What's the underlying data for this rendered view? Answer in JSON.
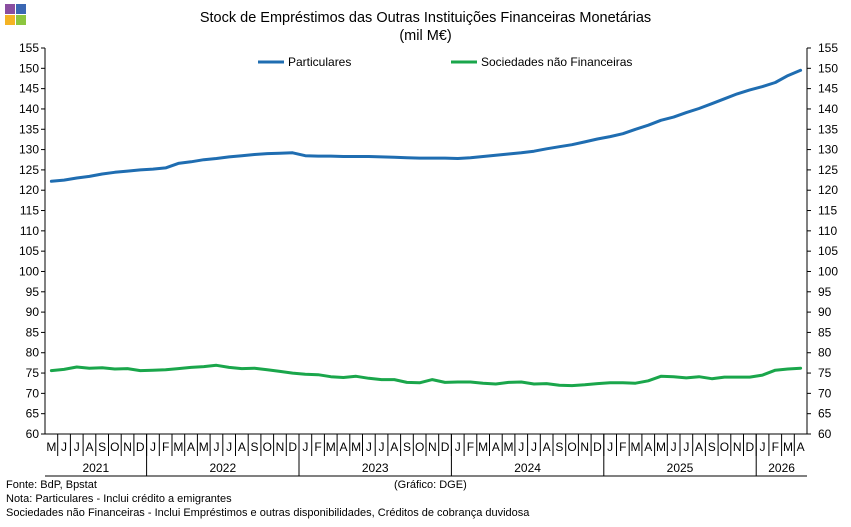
{
  "chart_data": {
    "type": "line",
    "title": "Stock de Empréstimos das Outras Instituições Financeiras Monetárias",
    "subtitle": "(mil M€)",
    "ylim": [
      60,
      155
    ],
    "yticks": [
      60,
      65,
      70,
      75,
      80,
      85,
      90,
      95,
      100,
      105,
      110,
      115,
      120,
      125,
      130,
      135,
      140,
      145,
      150,
      155
    ],
    "grid": false,
    "legend_position": "top",
    "month_labels": [
      "M",
      "J",
      "J",
      "A",
      "S",
      "O",
      "N",
      "D",
      "J",
      "F",
      "M",
      "A",
      "M",
      "J",
      "J",
      "A",
      "S",
      "O",
      "N",
      "D",
      "J",
      "F",
      "M",
      "A",
      "M",
      "J",
      "J",
      "A",
      "S",
      "O",
      "N",
      "D",
      "J",
      "F",
      "M",
      "A",
      "M",
      "J",
      "J",
      "A",
      "S",
      "O",
      "N",
      "D",
      "J",
      "F",
      "M",
      "A",
      "M",
      "J",
      "J",
      "A",
      "S",
      "O",
      "N",
      "D",
      "J",
      "F",
      "M",
      "A"
    ],
    "years": [
      {
        "label": "2021",
        "months": 8
      },
      {
        "label": "2022",
        "months": 12
      },
      {
        "label": "2023",
        "months": 12
      },
      {
        "label": "2024",
        "months": 12
      },
      {
        "label": "2025",
        "months": 12
      },
      {
        "label": "2026",
        "months": 4
      }
    ],
    "series": [
      {
        "name": "Particulares",
        "color": "#1f6db1",
        "values": [
          122.2,
          122.5,
          123.0,
          123.4,
          124.0,
          124.4,
          124.7,
          125.0,
          125.2,
          125.5,
          126.6,
          127.0,
          127.5,
          127.8,
          128.2,
          128.5,
          128.8,
          129.0,
          129.1,
          129.2,
          128.5,
          128.4,
          128.4,
          128.3,
          128.3,
          128.3,
          128.2,
          128.1,
          128.0,
          127.9,
          127.9,
          127.9,
          127.8,
          128.0,
          128.3,
          128.6,
          128.9,
          129.2,
          129.6,
          130.2,
          130.7,
          131.2,
          131.9,
          132.6,
          133.2,
          133.9,
          135.0,
          136.0,
          137.2,
          138.0,
          139.1,
          140.1,
          141.3,
          142.5,
          143.7,
          144.7,
          145.5,
          146.5,
          148.2,
          149.5
        ]
      },
      {
        "name": "Sociedades não Financeiras",
        "color": "#1aa64b",
        "values": [
          75.6,
          75.9,
          76.5,
          76.2,
          76.3,
          76.0,
          76.1,
          75.6,
          75.7,
          75.8,
          76.1,
          76.4,
          76.6,
          76.9,
          76.4,
          76.1,
          76.2,
          75.8,
          75.4,
          75.0,
          74.7,
          74.6,
          74.1,
          73.9,
          74.2,
          73.7,
          73.4,
          73.4,
          72.7,
          72.6,
          73.4,
          72.7,
          72.8,
          72.8,
          72.5,
          72.3,
          72.7,
          72.8,
          72.3,
          72.4,
          72.0,
          71.9,
          72.1,
          72.4,
          72.6,
          72.6,
          72.5,
          73.1,
          74.2,
          74.1,
          73.8,
          74.1,
          73.6,
          74.0,
          74.0,
          74.0,
          74.5,
          75.7,
          76.0,
          76.2
        ]
      }
    ]
  },
  "notes": {
    "source": "Fonte: BdP, Bpstat",
    "note1": "Nota: Particulares - Inclui crédito a emigrantes",
    "note2": "Sociedades não Financeiras - Inclui Empréstimos e outras disponibilidades, Créditos de cobrança duvidosa",
    "credit": "(Gráfico: DGE)"
  },
  "logo_colors": [
    "#8a4ea0",
    "#3b67b3",
    "#f4b324",
    "#8cc63f"
  ]
}
